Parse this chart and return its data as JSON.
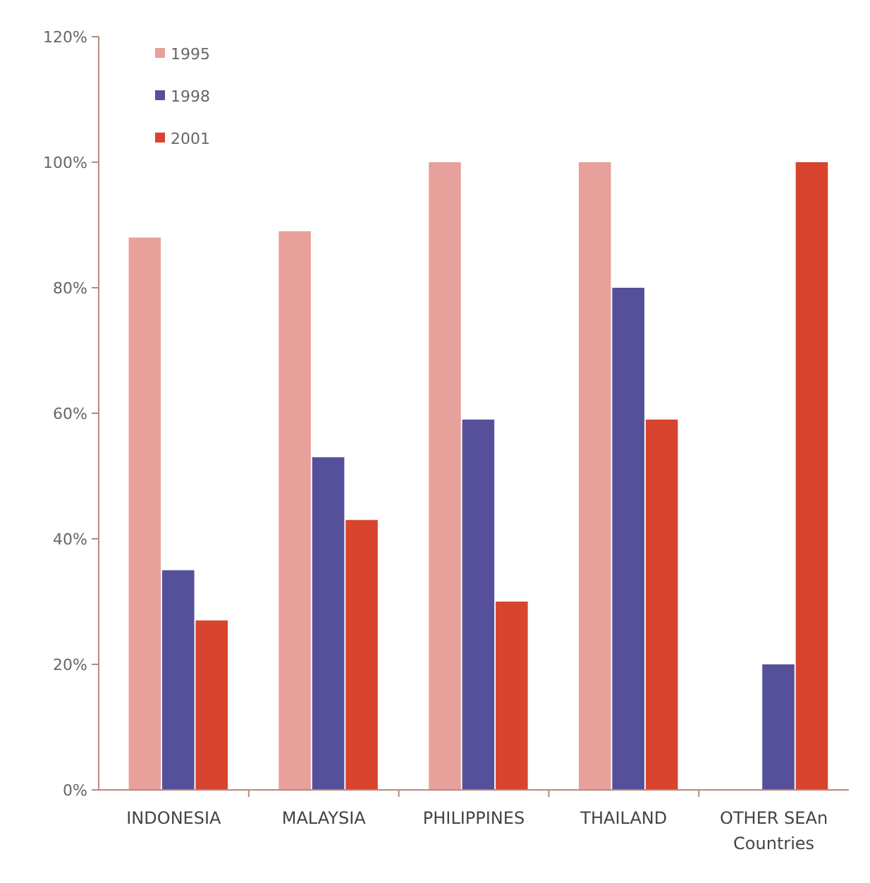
{
  "chart_data": {
    "type": "bar",
    "categories": [
      "INDONESIA",
      "MALAYSIA",
      "PHILIPPINES",
      "THAILAND",
      "OTHER SEAn\nCountries"
    ],
    "series": [
      {
        "name": "1995",
        "color": "#e8a09a",
        "values": [
          88,
          89,
          100,
          100,
          null
        ]
      },
      {
        "name": "1998",
        "color": "#56509a",
        "values": [
          35,
          53,
          59,
          80,
          20
        ]
      },
      {
        "name": "2001",
        "color": "#d8442e",
        "values": [
          27,
          43,
          30,
          59,
          100
        ]
      }
    ],
    "ylim": [
      0,
      120
    ],
    "yticks": [
      {
        "value": 0,
        "label": "0%"
      },
      {
        "value": 20,
        "label": "20%"
      },
      {
        "value": 40,
        "label": "40%"
      },
      {
        "value": 60,
        "label": "60%"
      },
      {
        "value": 80,
        "label": "80%"
      },
      {
        "value": 100,
        "label": "100%"
      },
      {
        "value": 120,
        "label": "120%"
      }
    ],
    "grid": false,
    "legend": "top left"
  }
}
